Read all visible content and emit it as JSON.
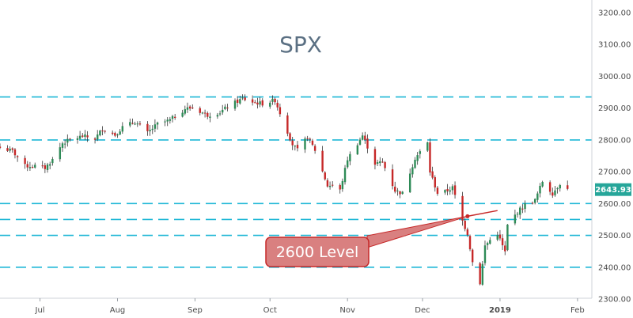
{
  "chart_data": {
    "type": "candlestick",
    "title": "SPX",
    "ylim": [
      2290,
      3230
    ],
    "grid": false,
    "y_ticks": [
      "3200.00",
      "3100.00",
      "3000.00",
      "2900.00",
      "2800.00",
      "2700.00",
      "2600.00",
      "2500.00",
      "2400.00",
      "2300.00"
    ],
    "x_ticks": [
      {
        "label": "Jul",
        "date": "2018-07-01",
        "bold": false
      },
      {
        "label": "Aug",
        "date": "2018-08-01",
        "bold": false
      },
      {
        "label": "Sep",
        "date": "2018-09-01",
        "bold": false
      },
      {
        "label": "Oct",
        "date": "2018-10-01",
        "bold": false
      },
      {
        "label": "Nov",
        "date": "2018-11-01",
        "bold": false
      },
      {
        "label": "Dec",
        "date": "2018-12-01",
        "bold": false
      },
      {
        "label": "2019",
        "date": "2019-01-01",
        "bold": true
      },
      {
        "label": "Feb",
        "date": "2019-02-01",
        "bold": false
      }
    ],
    "x_range": [
      "2018-06-15",
      "2019-02-08"
    ],
    "horizontal_levels": [
      2935,
      2800,
      2600,
      2550,
      2500,
      2400
    ],
    "last_price": {
      "value": 2643.93,
      "label": "2643.93",
      "color": "#26a69a"
    },
    "annotation": {
      "text": "2600 Level",
      "target_date": "2018-12-19",
      "target_value": 2560,
      "line_end_date": "2018-12-31",
      "line_end_value": 2578
    },
    "close_series": {
      "name": "SPX",
      "points": [
        [
          "2018-06-15",
          2775
        ],
        [
          "2018-06-20",
          2765
        ],
        [
          "2018-06-25",
          2718
        ],
        [
          "2018-06-29",
          2718
        ],
        [
          "2018-07-03",
          2712
        ],
        [
          "2018-07-06",
          2738
        ],
        [
          "2018-07-10",
          2790
        ],
        [
          "2018-07-13",
          2800
        ],
        [
          "2018-07-18",
          2812
        ],
        [
          "2018-07-23",
          2804
        ],
        [
          "2018-07-26",
          2835
        ],
        [
          "2018-07-31",
          2816
        ],
        [
          "2018-08-03",
          2840
        ],
        [
          "2018-08-08",
          2857
        ],
        [
          "2018-08-13",
          2822
        ],
        [
          "2018-08-17",
          2850
        ],
        [
          "2018-08-22",
          2862
        ],
        [
          "2018-08-28",
          2898
        ],
        [
          "2018-08-31",
          2901
        ],
        [
          "2018-09-06",
          2878
        ],
        [
          "2018-09-11",
          2887
        ],
        [
          "2018-09-14",
          2904
        ],
        [
          "2018-09-20",
          2930
        ],
        [
          "2018-09-24",
          2919
        ],
        [
          "2018-09-28",
          2914
        ],
        [
          "2018-10-03",
          2925
        ],
        [
          "2018-10-05",
          2885
        ],
        [
          "2018-10-10",
          2786
        ],
        [
          "2018-10-12",
          2767
        ],
        [
          "2018-10-16",
          2809
        ],
        [
          "2018-10-19",
          2768
        ],
        [
          "2018-10-24",
          2656
        ],
        [
          "2018-10-26",
          2658
        ],
        [
          "2018-10-29",
          2641
        ],
        [
          "2018-11-01",
          2740
        ],
        [
          "2018-11-07",
          2814
        ],
        [
          "2018-11-12",
          2726
        ],
        [
          "2018-11-15",
          2730
        ],
        [
          "2018-11-20",
          2641
        ],
        [
          "2018-11-23",
          2632
        ],
        [
          "2018-11-28",
          2743
        ],
        [
          "2018-12-03",
          2790
        ],
        [
          "2018-12-04",
          2700
        ],
        [
          "2018-12-07",
          2633
        ],
        [
          "2018-12-10",
          2637
        ],
        [
          "2018-12-13",
          2650
        ],
        [
          "2018-12-17",
          2545
        ],
        [
          "2018-12-19",
          2506
        ],
        [
          "2018-12-21",
          2416
        ],
        [
          "2018-12-24",
          2351
        ],
        [
          "2018-12-26",
          2467
        ],
        [
          "2018-12-28",
          2485
        ],
        [
          "2018-12-31",
          2506
        ],
        [
          "2019-01-03",
          2447
        ],
        [
          "2019-01-04",
          2531
        ],
        [
          "2019-01-08",
          2574
        ],
        [
          "2019-01-11",
          2596
        ],
        [
          "2019-01-15",
          2610
        ],
        [
          "2019-01-18",
          2670
        ],
        [
          "2019-01-22",
          2632
        ],
        [
          "2019-01-25",
          2664
        ],
        [
          "2019-01-28",
          2644
        ]
      ]
    }
  }
}
